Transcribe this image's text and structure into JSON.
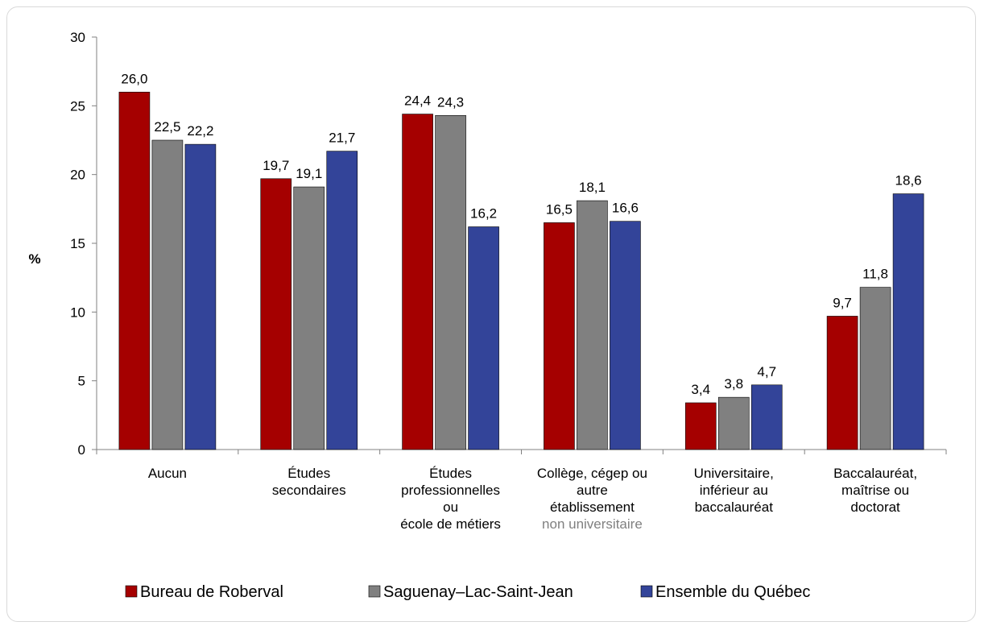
{
  "chart_data": {
    "type": "bar",
    "ylabel": "%",
    "ylim": [
      0,
      30
    ],
    "yticks": [
      "0",
      "5",
      "10",
      "15",
      "20",
      "25",
      "30"
    ],
    "ytick_values": [
      0,
      5,
      10,
      15,
      20,
      25,
      30
    ],
    "categories": [
      [
        "Aucun"
      ],
      [
        "Études",
        "secondaires"
      ],
      [
        "Études",
        "professionnelles",
        "ou",
        "école de métiers"
      ],
      [
        "Collège, cégep ou",
        "autre",
        "établissement",
        "non universitaire"
      ],
      [
        "Universitaire,",
        "inférieur au",
        "baccalauréat"
      ],
      [
        "Baccalauréat,",
        "maîtrise ou",
        "doctorat"
      ]
    ],
    "series": [
      {
        "name": "Bureau de Roberval",
        "color": "#a50000",
        "values": [
          26.0,
          19.7,
          24.4,
          16.5,
          3.4,
          9.7
        ],
        "labels": [
          "26,0",
          "19,7",
          "24,4",
          "16,5",
          "3,4",
          "9,7"
        ]
      },
      {
        "name": "Saguenay–Lac-Saint-Jean",
        "color": "#808080",
        "values": [
          22.5,
          19.1,
          24.3,
          18.1,
          3.8,
          11.8
        ],
        "labels": [
          "22,5",
          "19,1",
          "24,3",
          "18,1",
          "3,8",
          "11,8"
        ]
      },
      {
        "name": "Ensemble du Québec",
        "color": "#334499",
        "values": [
          22.2,
          21.7,
          16.2,
          16.6,
          4.7,
          18.6
        ],
        "labels": [
          "22,2",
          "21,7",
          "16,2",
          "16,6",
          "4,7",
          "18,6"
        ]
      }
    ],
    "legend_position": "bottom",
    "grid": false
  }
}
